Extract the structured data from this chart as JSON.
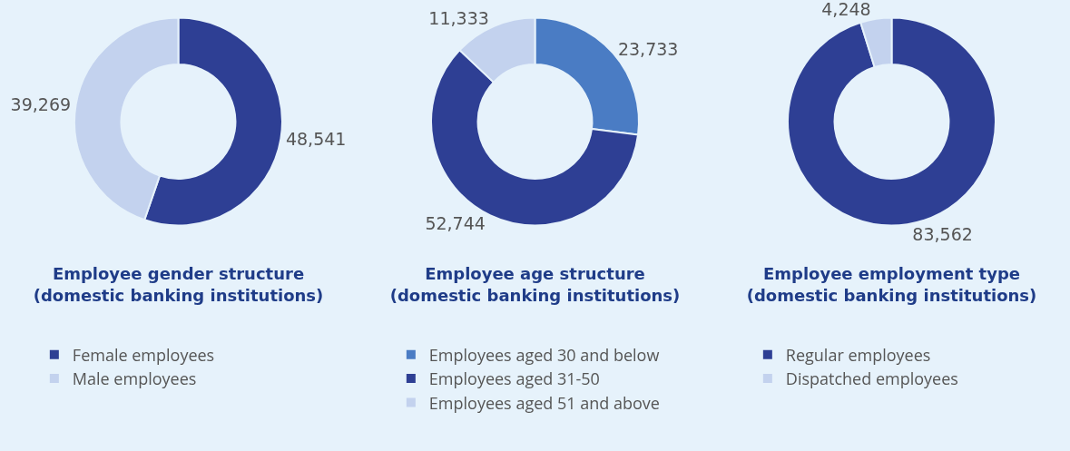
{
  "chart_data": [
    {
      "type": "donut",
      "title": "Employee gender structure\n(domestic banking institutions)",
      "categories": [
        "Female employees",
        "Male employees"
      ],
      "values": [
        48541,
        39269
      ],
      "value_labels": [
        "48,541",
        "39,269"
      ],
      "colors": [
        "#2e3f94",
        "#c3d2ee"
      ],
      "legend": "bottom"
    },
    {
      "type": "donut",
      "title": "Employee age structure\n(domestic banking institutions)",
      "categories": [
        "Employees aged 30 and below",
        "Employees aged 31-50",
        "Employees aged 51 and above"
      ],
      "values": [
        23733,
        52744,
        11333
      ],
      "value_labels": [
        "23,733",
        "52,744",
        "11,333"
      ],
      "colors": [
        "#4a7cc4",
        "#2e3f94",
        "#c3d2ee"
      ],
      "legend": "bottom"
    },
    {
      "type": "donut",
      "title": "Employee employment type\n(domestic banking institutions)",
      "categories": [
        "Regular employees",
        "Dispatched employees"
      ],
      "values": [
        83562,
        4248
      ],
      "value_labels": [
        "83,562",
        "4,248"
      ],
      "colors": [
        "#2e3f94",
        "#c3d2ee"
      ],
      "legend": "bottom"
    }
  ]
}
